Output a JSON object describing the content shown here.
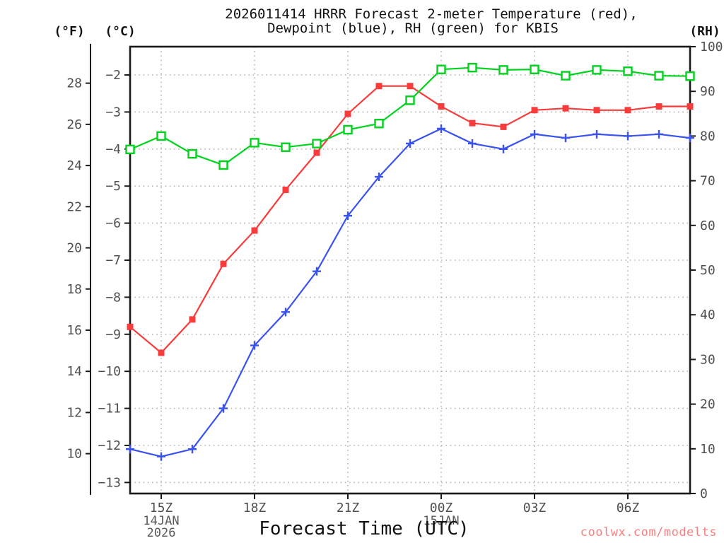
{
  "figure": {
    "title_line1": "2026011414 HRRR Forecast 2-meter Temperature (red),",
    "title_line2": "Dewpoint (blue), RH (green) for KBIS",
    "watermark": "coolwx.com/modelts"
  },
  "axes": {
    "fahrenheit": {
      "label": "(°F)",
      "ticks": [
        28,
        26,
        24,
        22,
        20,
        18,
        16,
        14,
        12,
        10
      ]
    },
    "celsius": {
      "label": "(°C)",
      "ticks": [
        -2,
        -3,
        -4,
        -5,
        -6,
        -7,
        -8,
        -9,
        -10,
        -11,
        -12,
        -13
      ]
    },
    "rh": {
      "label": "(RH)",
      "ticks": [
        100,
        90,
        80,
        70,
        60,
        50,
        40,
        30,
        20,
        10,
        0
      ]
    },
    "x": {
      "label": "Forecast Time (UTC)",
      "ticks": [
        {
          "label": "15Z",
          "hour_index": 1,
          "date_lines": [
            "14JAN",
            "2026"
          ]
        },
        {
          "label": "18Z",
          "hour_index": 4,
          "date_lines": []
        },
        {
          "label": "21Z",
          "hour_index": 7,
          "date_lines": []
        },
        {
          "label": "00Z",
          "hour_index": 10,
          "date_lines": [
            "15JAN"
          ]
        },
        {
          "label": "03Z",
          "hour_index": 13,
          "date_lines": []
        },
        {
          "label": "06Z",
          "hour_index": 16,
          "date_lines": []
        }
      ]
    }
  },
  "chart_data": {
    "type": "line",
    "station": "KBIS",
    "model_run": "2026011414 HRRR",
    "x_hours": [
      "14Z",
      "15Z",
      "16Z",
      "17Z",
      "18Z",
      "19Z",
      "20Z",
      "21Z",
      "22Z",
      "23Z",
      "00Z",
      "01Z",
      "02Z",
      "03Z",
      "04Z",
      "05Z",
      "06Z",
      "07Z",
      "08Z"
    ],
    "celsius_axis_visible_range": [
      -13.3,
      -1.24
    ],
    "rh_axis_range": [
      0,
      100
    ],
    "grid": {
      "horizontal_at_celsius_ticks": true,
      "vertical_at_labeled_hours": true
    },
    "series": [
      {
        "name": "2-meter Temperature",
        "unit": "°C",
        "axis": "celsius",
        "marker": "filled-square",
        "color_key": "temperature_red",
        "values": [
          -8.8,
          -9.5,
          -8.6,
          -7.1,
          -6.2,
          -5.1,
          -4.1,
          -3.05,
          -2.3,
          -2.3,
          -2.85,
          -3.3,
          -3.4,
          -2.95,
          -2.9,
          -2.95,
          -2.95,
          -2.85,
          -2.85
        ]
      },
      {
        "name": "Dewpoint",
        "unit": "°C",
        "axis": "celsius",
        "marker": "plus",
        "color_key": "dewpoint_blue",
        "values": [
          -12.1,
          -12.3,
          -12.1,
          -11.0,
          -9.3,
          -8.4,
          -7.3,
          -5.8,
          -4.75,
          -3.85,
          -3.45,
          -3.85,
          -4.0,
          -3.6,
          -3.7,
          -3.6,
          -3.65,
          -3.6,
          -3.7
        ]
      },
      {
        "name": "RH",
        "unit": "%",
        "axis": "rh",
        "marker": "open-square",
        "color_key": "rh_green",
        "values": [
          77,
          80,
          76,
          73.5,
          78.5,
          77.5,
          78.3,
          81.4,
          82.8,
          88,
          94.9,
          95.3,
          94.8,
          94.9,
          93.5,
          94.8,
          94.5,
          93.5,
          93.4
        ]
      }
    ]
  },
  "colors": {
    "temperature_red": "#f83b3b",
    "dewpoint_blue": "#3a52f0",
    "rh_green": "#00d21e",
    "watermark": "#f88080",
    "grid": "#b4b4b4",
    "axis": "#1a1a1a"
  }
}
